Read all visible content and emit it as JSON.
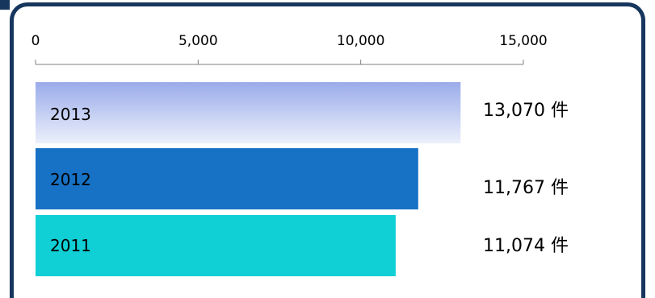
{
  "chart_data": {
    "type": "bar",
    "orientation": "horizontal",
    "x_ticks": [
      "0",
      "5,000",
      "10,000",
      "15,000"
    ],
    "xlim": [
      0,
      15000
    ],
    "categories": [
      "2013",
      "2012",
      "2011"
    ],
    "values": [
      13070,
      11767,
      11074
    ],
    "value_labels": [
      "13,070 件",
      "11,767 件",
      "11,074 件"
    ],
    "colors": [
      "#a5b5ec",
      "#1771c4",
      "#10cfd5"
    ],
    "axis_color": "#7f7f7f",
    "frame_color": "#17365d"
  }
}
